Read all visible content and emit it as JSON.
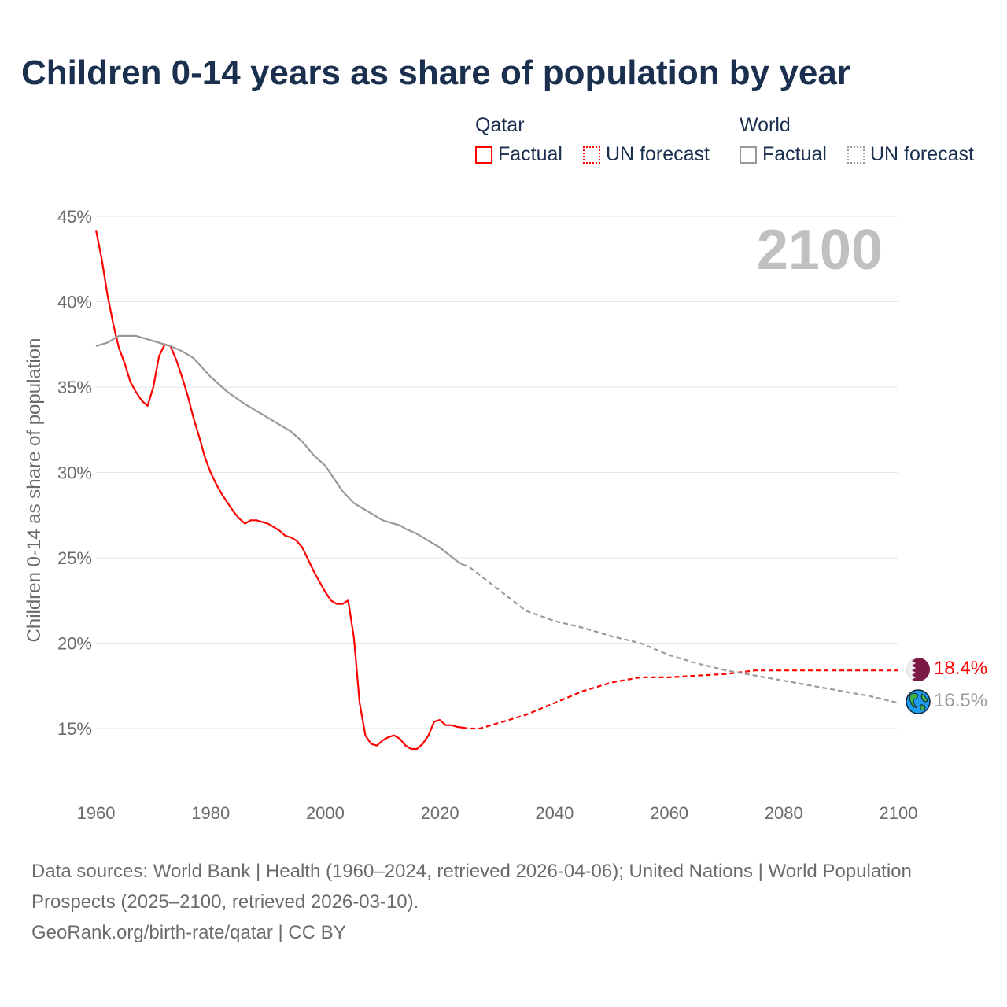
{
  "title": "Children 0-14 years as share of population by year",
  "legend": {
    "qatar": {
      "heading": "Qatar",
      "factual": "Factual",
      "forecast": "UN forecast",
      "color": "#ff0000"
    },
    "world": {
      "heading": "World",
      "factual": "Factual",
      "forecast": "UN forecast",
      "color": "#999999"
    }
  },
  "year_label": "2100",
  "end_labels": {
    "qatar": "18.4%",
    "world": "16.5%"
  },
  "icons": {
    "qatar": "qatar-flag-icon",
    "world": "globe-icon"
  },
  "footer": {
    "line1": "Data sources: World Bank | Health (1960–2024, retrieved 2026-04-06); United Nations | World Population Prospects (2025–2100, retrieved 2026-03-10).",
    "line2": "GeoRank.org/birth-rate/qatar | CC BY"
  },
  "chart_data": {
    "type": "line",
    "title": "Children 0-14 years as share of population by year",
    "xlabel": "",
    "ylabel": "Children 0-14 as share of population",
    "xlim": [
      1960,
      2100
    ],
    "ylim": [
      11.6,
      45
    ],
    "xticks": [
      1960,
      1980,
      2000,
      2020,
      2040,
      2060,
      2080,
      2100
    ],
    "yticks": [
      15,
      20,
      25,
      30,
      35,
      40,
      45
    ],
    "ytick_labels": [
      "15%",
      "20%",
      "25%",
      "30%",
      "35%",
      "40%",
      "45%"
    ],
    "grid": true,
    "series": [
      {
        "name": "Qatar Factual",
        "color": "#ff0000",
        "dashed": false,
        "x": [
          1960,
          1961,
          1962,
          1963,
          1964,
          1965,
          1966,
          1967,
          1968,
          1969,
          1970,
          1971,
          1972,
          1973,
          1974,
          1975,
          1976,
          1977,
          1978,
          1979,
          1980,
          1981,
          1982,
          1983,
          1984,
          1985,
          1986,
          1987,
          1988,
          1989,
          1990,
          1991,
          1992,
          1993,
          1994,
          1995,
          1996,
          1997,
          1998,
          1999,
          2000,
          2001,
          2002,
          2003,
          2004,
          2005,
          2006,
          2007,
          2008,
          2009,
          2010,
          2011,
          2012,
          2013,
          2014,
          2015,
          2016,
          2017,
          2018,
          2019,
          2020,
          2021,
          2022,
          2023,
          2024
        ],
        "y": [
          44.2,
          42.5,
          40.4,
          38.7,
          37.3,
          36.4,
          35.3,
          34.7,
          34.2,
          33.9,
          35.0,
          36.8,
          37.5,
          37.4,
          36.6,
          35.6,
          34.5,
          33.2,
          32.1,
          30.9,
          30.0,
          29.3,
          28.7,
          28.2,
          27.7,
          27.3,
          27.0,
          27.2,
          27.2,
          27.1,
          27.0,
          26.8,
          26.6,
          26.3,
          26.2,
          26.0,
          25.6,
          24.9,
          24.2,
          23.6,
          23.0,
          22.5,
          22.3,
          22.3,
          22.5,
          20.3,
          16.5,
          14.6,
          14.1,
          14.0,
          14.3,
          14.5,
          14.6,
          14.4,
          14.0,
          13.8,
          13.8,
          14.1,
          14.6,
          15.4,
          15.5,
          15.2,
          15.2,
          15.1,
          15.05
        ]
      },
      {
        "name": "Qatar UN forecast",
        "color": "#ff0000",
        "dashed": true,
        "x": [
          2024,
          2025,
          2027,
          2030,
          2035,
          2040,
          2045,
          2050,
          2055,
          2060,
          2065,
          2070,
          2075,
          2080,
          2090,
          2100
        ],
        "y": [
          15.05,
          15.0,
          15.0,
          15.3,
          15.8,
          16.5,
          17.2,
          17.7,
          18.0,
          18.0,
          18.1,
          18.2,
          18.4,
          18.4,
          18.4,
          18.4
        ]
      },
      {
        "name": "World Factual",
        "color": "#999999",
        "dashed": false,
        "x": [
          1960,
          1962,
          1964,
          1967,
          1970,
          1973,
          1975,
          1977,
          1980,
          1983,
          1986,
          1989,
          1991,
          1994,
          1996,
          1998,
          2000,
          2003,
          2005,
          2008,
          2010,
          2013,
          2014,
          2016,
          2018,
          2020,
          2023,
          2024
        ],
        "y": [
          37.4,
          37.6,
          38.0,
          38.0,
          37.7,
          37.4,
          37.1,
          36.7,
          35.6,
          34.7,
          34.0,
          33.4,
          33.0,
          32.4,
          31.8,
          31.0,
          30.4,
          28.9,
          28.2,
          27.6,
          27.2,
          26.9,
          26.7,
          26.4,
          26.0,
          25.6,
          24.8,
          24.6
        ]
      },
      {
        "name": "World UN forecast",
        "color": "#999999",
        "dashed": true,
        "x": [
          2024,
          2025,
          2030,
          2035,
          2040,
          2045,
          2050,
          2055,
          2060,
          2065,
          2070,
          2075,
          2080,
          2085,
          2090,
          2095,
          2100
        ],
        "y": [
          24.6,
          24.5,
          23.2,
          21.9,
          21.3,
          20.9,
          20.4,
          20.0,
          19.3,
          18.8,
          18.4,
          18.1,
          17.8,
          17.5,
          17.2,
          16.9,
          16.5
        ]
      }
    ]
  }
}
